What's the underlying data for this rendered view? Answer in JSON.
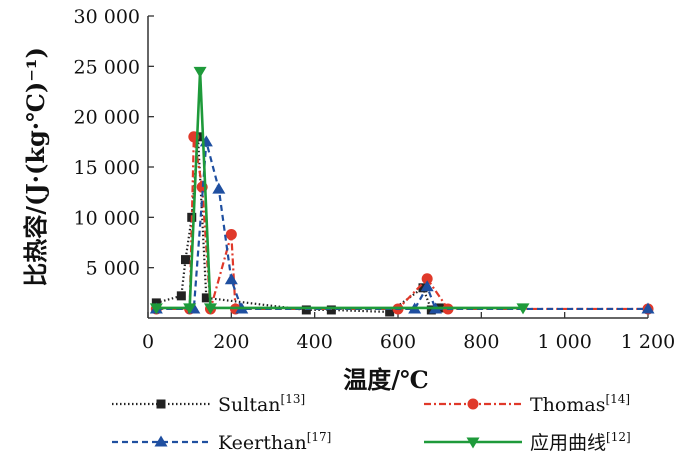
{
  "chart_data": {
    "type": "line",
    "title": "",
    "xlabel": "温度/℃",
    "ylabel": "比热容/(J·(kg·℃)⁻¹)",
    "xlim": [
      0,
      1200
    ],
    "ylim": [
      0,
      30000
    ],
    "xticks": [
      {
        "v": 0,
        "label": "0"
      },
      {
        "v": 200,
        "label": "200"
      },
      {
        "v": 400,
        "label": "400"
      },
      {
        "v": 600,
        "label": "600"
      },
      {
        "v": 800,
        "label": "800"
      },
      {
        "v": 1000,
        "label": "1 000"
      },
      {
        "v": 1200,
        "label": "1 200"
      }
    ],
    "yticks": [
      {
        "v": 5000,
        "label": "5 000"
      },
      {
        "v": 10000,
        "label": "10 000"
      },
      {
        "v": 15000,
        "label": "15 000"
      },
      {
        "v": 20000,
        "label": "20 000"
      },
      {
        "v": 25000,
        "label": "25 000"
      },
      {
        "v": 30000,
        "label": "30 000"
      }
    ],
    "grid": false,
    "legend_position": "bottom",
    "series": [
      {
        "name": "Sultan",
        "ref": "[13]",
        "color": "#222222",
        "marker": "square",
        "dash": "dotted",
        "points": [
          [
            20,
            1500
          ],
          [
            80,
            2200
          ],
          [
            90,
            5800
          ],
          [
            105,
            10000
          ],
          [
            120,
            18000
          ],
          [
            140,
            2000
          ],
          [
            380,
            800
          ],
          [
            440,
            800
          ],
          [
            580,
            600
          ],
          [
            660,
            3000
          ],
          [
            680,
            800
          ],
          [
            700,
            1000
          ]
        ]
      },
      {
        "name": "Thomas",
        "ref": "[14]",
        "color": "#e0392a",
        "marker": "circle",
        "dash": "dashdot",
        "points": [
          [
            20,
            900
          ],
          [
            100,
            900
          ],
          [
            110,
            18000
          ],
          [
            130,
            13000
          ],
          [
            150,
            900
          ],
          [
            200,
            8300
          ],
          [
            210,
            900
          ],
          [
            600,
            900
          ],
          [
            670,
            3900
          ],
          [
            720,
            900
          ],
          [
            1200,
            900
          ]
        ]
      },
      {
        "name": "Keerthan",
        "ref": "[17]",
        "color": "#1f4fa0",
        "marker": "triangle-up",
        "dash": "dashed",
        "points": [
          [
            20,
            900
          ],
          [
            110,
            900
          ],
          [
            140,
            17500
          ],
          [
            170,
            12800
          ],
          [
            200,
            3800
          ],
          [
            225,
            900
          ],
          [
            640,
            900
          ],
          [
            670,
            3100
          ],
          [
            690,
            900
          ],
          [
            1200,
            900
          ]
        ]
      },
      {
        "name": "应用曲线",
        "ref": "[12]",
        "color": "#1e9a3a",
        "marker": "triangle-down",
        "dash": "solid",
        "points": [
          [
            20,
            1000
          ],
          [
            100,
            1000
          ],
          [
            125,
            24500
          ],
          [
            150,
            1000
          ],
          [
            900,
            1000
          ]
        ]
      }
    ]
  }
}
